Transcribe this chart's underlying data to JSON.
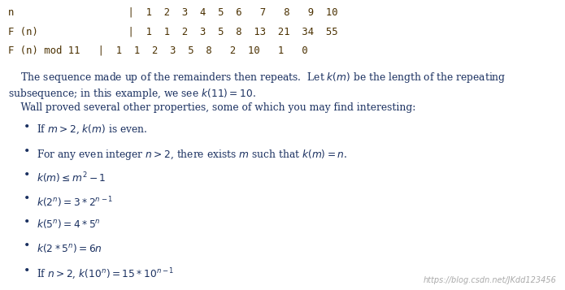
{
  "bg_color": "#ffffff",
  "text_color": "#1a5276",
  "mono_color": "#8B4513",
  "body_color": "#1a3a5c",
  "watermark": "https://blog.csdn.net/JKdd123456",
  "table_row1": "n                   |  1  2  3  4  5  6   7   8   9  10",
  "table_row2": "F (n)               |  1  1  2  3  5  8  13  21  34  55",
  "table_row3": "F (n) mod 11   |  1  1  2  3  5  8   2  10   1   0"
}
